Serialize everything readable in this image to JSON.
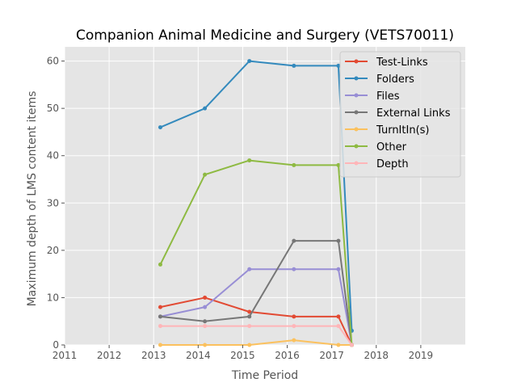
{
  "chart_data": {
    "type": "line",
    "title": "Companion Animal Medicine and Surgery (VETS70011)",
    "xlabel": "Time Period",
    "ylabel": "Maximum depth of LMS content items",
    "xlim": [
      2011.0,
      2020.0
    ],
    "ylim": [
      0,
      63
    ],
    "x_ticks": [
      2011,
      2012,
      2013,
      2014,
      2015,
      2016,
      2017,
      2018,
      2019
    ],
    "y_ticks": [
      0,
      10,
      20,
      30,
      40,
      50,
      60
    ],
    "x": [
      2013.15,
      2014.15,
      2015.15,
      2016.15,
      2017.15,
      2017.45
    ],
    "grid": true,
    "legend_position": "top-right",
    "background": "#e5e5e5",
    "series": [
      {
        "name": "Test-Links",
        "color": "#e24a33",
        "values": [
          8,
          10,
          7,
          6,
          6,
          0
        ]
      },
      {
        "name": "Folders",
        "color": "#348abd",
        "values": [
          46,
          50,
          60,
          59,
          59,
          3
        ]
      },
      {
        "name": "Files",
        "color": "#988ed5",
        "values": [
          6,
          8,
          16,
          16,
          16,
          0
        ]
      },
      {
        "name": "External Links",
        "color": "#777777",
        "values": [
          6,
          5,
          6,
          22,
          22,
          0
        ]
      },
      {
        "name": "TurnItIn(s)",
        "color": "#fbc15e",
        "values": [
          0,
          0,
          0,
          1,
          0,
          0
        ]
      },
      {
        "name": "Other",
        "color": "#8eba42",
        "values": [
          17,
          36,
          39,
          38,
          38,
          0
        ]
      },
      {
        "name": "Depth",
        "color": "#ffb5b8",
        "values": [
          4,
          4,
          4,
          4,
          4,
          0
        ]
      }
    ]
  }
}
